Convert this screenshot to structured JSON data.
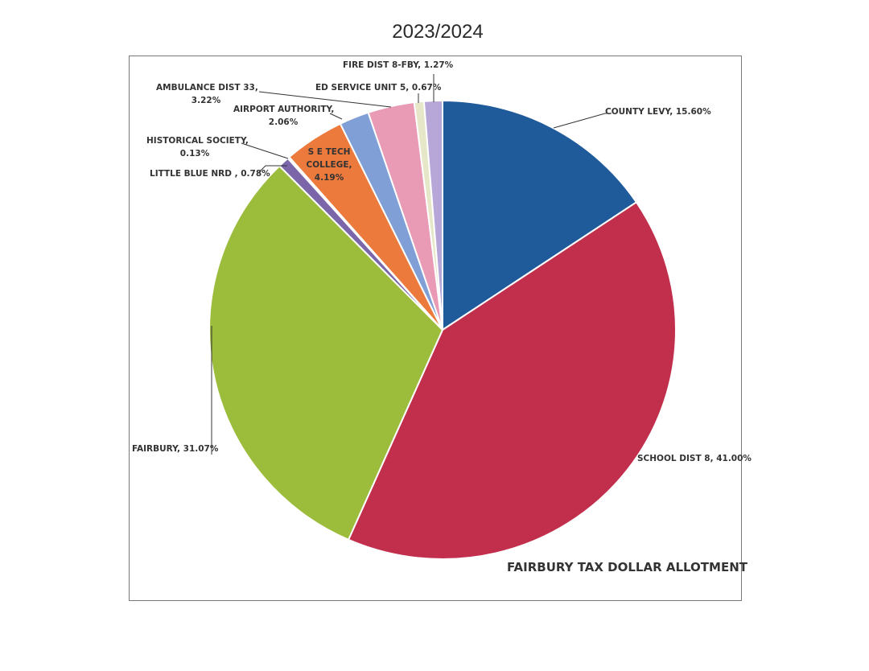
{
  "page": {
    "title": "2023/2024"
  },
  "chart_data": {
    "type": "pie",
    "title": "FAIRBURY TAX DOLLAR ALLOTMENT",
    "categories": [
      "COUNTY LEVY",
      "SCHOOL DIST 8",
      "FAIRBURY",
      "LITTLE BLUE NRD",
      "HISTORICAL SOCIETY",
      "S E TECH COLLEGE",
      "AIRPORT AUTHORITY",
      "AMBULANCE DIST 33",
      "ED SERVICE UNIT 5",
      "FIRE DIST 8-FBY"
    ],
    "values": [
      15.6,
      41.0,
      31.07,
      0.78,
      0.13,
      4.19,
      2.06,
      3.22,
      0.67,
      1.27
    ],
    "colors": [
      "#1f5a9a",
      "#c22f4c",
      "#9cbc3c",
      "#7a66a8",
      "#d8d8d8",
      "#ec7a3c",
      "#7f9fd6",
      "#e99ab5",
      "#e6e6c8",
      "#b7a6d8"
    ],
    "units": "%",
    "legend": "data labels on slices"
  },
  "labels": {
    "county_levy": "COUNTY LEVY, 15.60%",
    "school_dist": "SCHOOL DIST 8, 41.00%",
    "fairbury": "FAIRBURY, 31.07%",
    "little_blue": "LITTLE BLUE NRD , 0.78%",
    "historical_1": "HISTORICAL SOCIETY,",
    "historical_2": "0.13%",
    "se_tech_1": "S E TECH",
    "se_tech_2": "COLLEGE,",
    "se_tech_3": "4.19%",
    "airport_1": "AIRPORT AUTHORITY,",
    "airport_2": "2.06%",
    "ambulance_1": "AMBULANCE DIST 33,",
    "ambulance_2": "3.22%",
    "ed_service": "ED SERVICE UNIT 5, 0.67%",
    "fire_dist": "FIRE DIST 8-FBY, 1.27%"
  }
}
